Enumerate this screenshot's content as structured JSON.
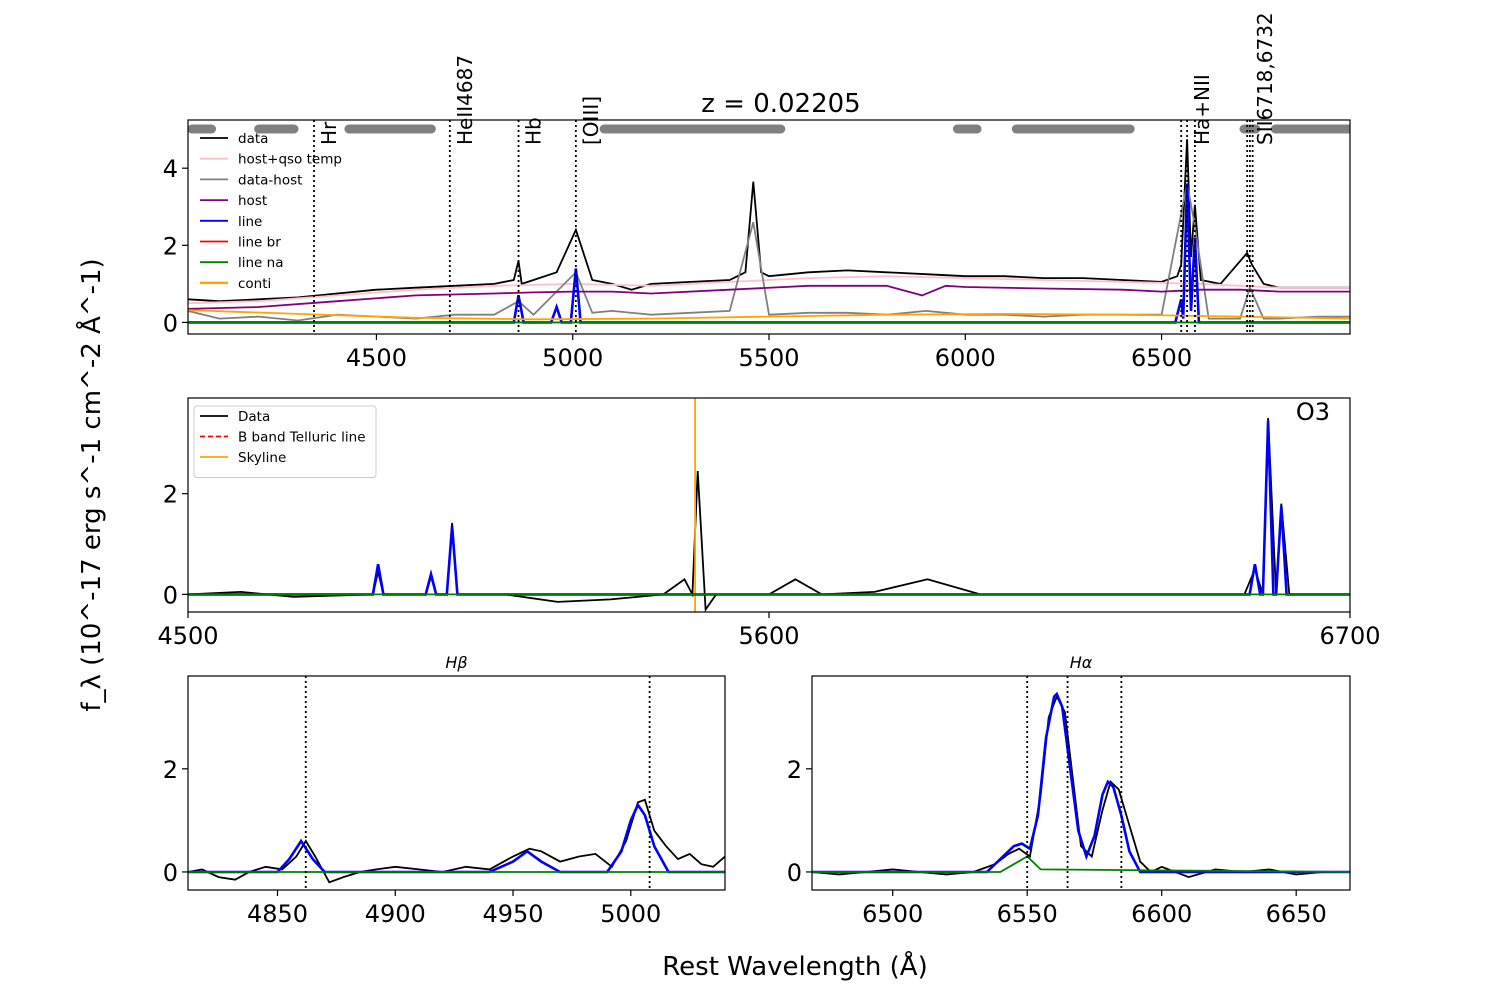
{
  "figure": {
    "ylabel": "f_λ (10^-17 erg s^-1 cm^-2 Å^-1)",
    "xlabel": "Rest Wavelength (Å)"
  },
  "chart_data": [
    {
      "type": "line",
      "panel": "full",
      "title": "z = 0.02205",
      "xlim": [
        4020,
        6980
      ],
      "ylim": [
        -0.3,
        5.25
      ],
      "xticks": [
        4500,
        5000,
        5500,
        6000,
        6500
      ],
      "yticks": [
        0,
        2,
        4
      ],
      "legend": [
        "data",
        "host+qso temp",
        "data-host",
        "host",
        "line",
        "line br",
        "line na",
        "conti"
      ],
      "legend_position": "upper-left",
      "line_marks": [
        {
          "label": "Hr",
          "x": 4341
        },
        {
          "label": "HeII4687",
          "x": 4687
        },
        {
          "label": "Hb",
          "x": 4862
        },
        {
          "label": "[OIII]",
          "x": 5008
        },
        {
          "label": "Ha+NII",
          "x": 6565
        },
        {
          "label": "SII6718,6732",
          "x": 6725
        }
      ],
      "extra_dotted_x": [
        6550,
        6585,
        6718,
        6732
      ],
      "continuum_windows": [
        [
          4030,
          4080
        ],
        [
          4200,
          4290
        ],
        [
          4430,
          4640
        ],
        [
          5080,
          5530
        ],
        [
          5980,
          6030
        ],
        [
          6130,
          6420
        ],
        [
          6710,
          6740
        ],
        [
          6790,
          6980
        ]
      ],
      "series": [
        {
          "name": "data",
          "color": "#000000",
          "x": [
            4020,
            4100,
            4200,
            4300,
            4400,
            4500,
            4600,
            4700,
            4800,
            4850,
            4862,
            4870,
            4900,
            4959,
            5008,
            5050,
            5100,
            5150,
            5200,
            5300,
            5400,
            5440,
            5460,
            5480,
            5500,
            5600,
            5700,
            5800,
            5900,
            6000,
            6100,
            6200,
            6300,
            6400,
            6500,
            6540,
            6550,
            6565,
            6575,
            6585,
            6600,
            6650,
            6718,
            6730,
            6760,
            6800,
            6900,
            6980
          ],
          "y": [
            0.6,
            0.55,
            0.6,
            0.65,
            0.75,
            0.85,
            0.9,
            0.95,
            1.0,
            1.1,
            1.6,
            1.0,
            1.1,
            1.3,
            2.4,
            1.1,
            1.0,
            0.85,
            1.0,
            1.05,
            1.1,
            1.3,
            3.65,
            1.3,
            1.2,
            1.3,
            1.35,
            1.3,
            1.25,
            1.2,
            1.2,
            1.15,
            1.15,
            1.1,
            1.05,
            1.2,
            1.5,
            4.75,
            1.7,
            3.05,
            1.1,
            1.0,
            1.8,
            1.5,
            1.0,
            0.9,
            0.9,
            0.9
          ]
        },
        {
          "name": "host+qso temp",
          "color": "#ffc0cb",
          "x": [
            4020,
            4200,
            4400,
            4600,
            4800,
            5000,
            5200,
            5400,
            5600,
            5800,
            6000,
            6200,
            6400,
            6600,
            6800,
            6980
          ],
          "y": [
            0.5,
            0.55,
            0.7,
            0.85,
            0.95,
            1.0,
            0.95,
            1.05,
            1.15,
            1.2,
            1.15,
            1.1,
            1.05,
            1.0,
            0.9,
            0.9
          ]
        },
        {
          "name": "data-host",
          "color": "#808080",
          "x": [
            4020,
            4100,
            4200,
            4300,
            4400,
            4500,
            4600,
            4700,
            4800,
            4862,
            4900,
            5008,
            5050,
            5100,
            5200,
            5300,
            5400,
            5460,
            5500,
            5600,
            5700,
            5800,
            5900,
            6000,
            6100,
            6200,
            6300,
            6400,
            6500,
            6565,
            6585,
            6620,
            6700,
            6725,
            6760,
            6800,
            6900,
            6980
          ],
          "y": [
            0.3,
            0.1,
            0.15,
            0.05,
            0.2,
            0.15,
            0.1,
            0.2,
            0.2,
            0.55,
            0.2,
            1.3,
            0.25,
            0.3,
            0.2,
            0.25,
            0.3,
            2.6,
            0.2,
            0.25,
            0.25,
            0.2,
            0.3,
            0.2,
            0.2,
            0.15,
            0.2,
            0.2,
            0.2,
            3.6,
            2.5,
            0.1,
            0.1,
            0.9,
            0.1,
            0.1,
            0.15,
            0.15
          ]
        },
        {
          "name": "host",
          "color": "#800080",
          "x": [
            4020,
            4200,
            4400,
            4600,
            4800,
            4900,
            5000,
            5100,
            5200,
            5400,
            5600,
            5800,
            5890,
            5950,
            6000,
            6200,
            6400,
            6500,
            6600,
            6700,
            6800,
            6980
          ],
          "y": [
            0.35,
            0.4,
            0.55,
            0.7,
            0.75,
            0.78,
            0.8,
            0.8,
            0.75,
            0.85,
            0.95,
            0.95,
            0.7,
            0.95,
            0.92,
            0.88,
            0.85,
            0.8,
            0.85,
            0.85,
            0.8,
            0.8
          ]
        },
        {
          "name": "line",
          "color": "#0000ff",
          "x": [
            4020,
            4850,
            4862,
            4875,
            4945,
            4959,
            4972,
            4995,
            5008,
            5020,
            6535,
            6550,
            6555,
            6565,
            6575,
            6585,
            6595,
            6980
          ],
          "y": [
            0,
            0,
            0.7,
            0,
            0,
            0.4,
            0,
            0,
            1.4,
            0,
            0,
            0.6,
            0.1,
            3.6,
            0.3,
            2.2,
            0,
            0
          ]
        },
        {
          "name": "line br",
          "color": "#ff0000",
          "x": [
            4020,
            6980
          ],
          "y": [
            0,
            0
          ]
        },
        {
          "name": "line na",
          "color": "#008000",
          "x": [
            4020,
            6980
          ],
          "y": [
            0,
            0
          ]
        },
        {
          "name": "conti",
          "color": "#ffa500",
          "x": [
            4020,
            4300,
            4600,
            4900,
            5200,
            5500,
            5800,
            6100,
            6400,
            6700,
            6980
          ],
          "y": [
            0.32,
            0.22,
            0.12,
            0.08,
            0.1,
            0.15,
            0.2,
            0.22,
            0.2,
            0.15,
            0.1
          ]
        }
      ]
    },
    {
      "type": "line",
      "panel": "O3",
      "annotation": "O3",
      "xlim": [
        4500,
        6700
      ],
      "ylim": [
        -0.35,
        3.9
      ],
      "xticks": [
        4500,
        5600,
        6700
      ],
      "yticks": [
        0,
        2
      ],
      "legend": [
        "Data",
        "B band Telluric line",
        "Skyline"
      ],
      "legend_position": "upper-left",
      "skyline_x": [
        5460
      ],
      "series": [
        {
          "name": "Data",
          "color": "#000000",
          "x": [
            4500,
            4600,
            4700,
            4850,
            4860,
            4870,
            4950,
            4960,
            4970,
            4990,
            5000,
            5010,
            5100,
            5200,
            5300,
            5400,
            5440,
            5455,
            5465,
            5480,
            5500,
            5600,
            5650,
            5700,
            5800,
            5900,
            6000,
            6100,
            6200,
            6300,
            6400,
            6500,
            6520,
            6535,
            6545,
            6560,
            6570,
            6585,
            6600,
            6700
          ],
          "y": [
            0,
            0.05,
            -0.05,
            0,
            0.45,
            0,
            0,
            0.35,
            0,
            0,
            1.42,
            0,
            0,
            -0.15,
            -0.1,
            0,
            0.3,
            0,
            2.45,
            -0.3,
            0,
            0,
            0.3,
            0,
            0.05,
            0.3,
            0,
            0,
            0,
            0,
            0,
            0,
            0.5,
            0,
            3.5,
            0,
            1.8,
            0,
            0,
            0
          ]
        },
        {
          "name": "Skyline",
          "color": "#ffa500",
          "x": [
            5460,
            5460
          ],
          "y": [
            -0.35,
            3.9
          ]
        },
        {
          "name": "line",
          "color": "#0000ff",
          "x": [
            4500,
            4850,
            4860,
            4870,
            4950,
            4960,
            4970,
            4990,
            5000,
            5010,
            6510,
            6520,
            6530,
            6535,
            6545,
            6555,
            6560,
            6570,
            6580,
            6700
          ],
          "y": [
            0,
            0,
            0.6,
            0,
            0,
            0.4,
            0,
            0,
            1.35,
            0,
            0,
            0.6,
            0,
            0,
            3.45,
            0,
            0,
            1.75,
            0,
            0
          ]
        },
        {
          "name": "line na",
          "color": "#008000",
          "x": [
            4500,
            6700
          ],
          "y": [
            0,
            0
          ]
        }
      ]
    },
    {
      "type": "line",
      "panel": "Hb",
      "title": "Hβ",
      "xlim": [
        4812,
        5040
      ],
      "ylim": [
        -0.35,
        3.8
      ],
      "xticks": [
        4850,
        4900,
        4950,
        5000
      ],
      "yticks": [
        0,
        2
      ],
      "dotted_x": [
        4862,
        5008
      ],
      "series": [
        {
          "name": "data",
          "color": "#000000",
          "x": [
            4812,
            4818,
            4825,
            4832,
            4838,
            4845,
            4852,
            4858,
            4862,
            4866,
            4872,
            4878,
            4885,
            4892,
            4900,
            4910,
            4920,
            4930,
            4940,
            4950,
            4957,
            4962,
            4970,
            4978,
            4985,
            4992,
            4998,
            5003,
            5006,
            5010,
            5015,
            5020,
            5025,
            5030,
            5035,
            5040
          ],
          "y": [
            0,
            0.05,
            -0.1,
            -0.15,
            0,
            0.1,
            0.05,
            0.3,
            0.6,
            0.3,
            -0.2,
            -0.1,
            0,
            0.05,
            0.1,
            0.05,
            0,
            0.1,
            0.05,
            0.3,
            0.45,
            0.4,
            0.2,
            0.3,
            0.35,
            0.1,
            0.6,
            1.35,
            1.4,
            0.8,
            0.5,
            0.25,
            0.35,
            0.15,
            0.1,
            0.3
          ]
        },
        {
          "name": "line",
          "color": "#0000ff",
          "x": [
            4812,
            4850,
            4855,
            4860,
            4865,
            4870,
            4940,
            4950,
            4956,
            4962,
            4970,
            4990,
            4996,
            5000,
            5003,
            5006,
            5010,
            5016,
            5040
          ],
          "y": [
            0,
            0,
            0.25,
            0.6,
            0.25,
            0,
            0,
            0.2,
            0.4,
            0.2,
            0,
            0,
            0.4,
            1.0,
            1.3,
            1.1,
            0.5,
            0,
            0
          ]
        },
        {
          "name": "line na",
          "color": "#008000",
          "x": [
            4812,
            5040
          ],
          "y": [
            0,
            0
          ]
        }
      ]
    },
    {
      "type": "line",
      "panel": "Ha",
      "title": "Hα",
      "xlim": [
        6470,
        6670
      ],
      "ylim": [
        -0.35,
        3.8
      ],
      "xticks": [
        6500,
        6550,
        6600,
        6650
      ],
      "yticks": [
        0,
        2
      ],
      "dotted_x": [
        6550,
        6565,
        6585
      ],
      "series": [
        {
          "name": "data",
          "color": "#000000",
          "x": [
            6470,
            6480,
            6490,
            6500,
            6510,
            6520,
            6530,
            6538,
            6543,
            6547,
            6551,
            6555,
            6558,
            6561,
            6564,
            6567,
            6570,
            6574,
            6578,
            6581,
            6584,
            6588,
            6592,
            6596,
            6600,
            6610,
            6620,
            6630,
            6640,
            6650,
            6660,
            6670
          ],
          "y": [
            0,
            -0.05,
            0,
            0.05,
            0,
            -0.05,
            0,
            0.15,
            0.35,
            0.45,
            0.3,
            1.5,
            3.0,
            3.4,
            3.1,
            1.8,
            0.5,
            0.3,
            1.2,
            1.75,
            1.6,
            0.9,
            0.2,
            0,
            0.1,
            -0.1,
            0.05,
            0,
            0.05,
            -0.05,
            0,
            0
          ]
        },
        {
          "name": "line",
          "color": "#0000ff",
          "x": [
            6470,
            6535,
            6540,
            6545,
            6548,
            6551,
            6554,
            6557,
            6560,
            6561,
            6563,
            6566,
            6569,
            6572,
            6575,
            6578,
            6580,
            6582,
            6585,
            6588,
            6592,
            6670
          ],
          "y": [
            0,
            0,
            0.25,
            0.5,
            0.55,
            0.45,
            1.1,
            2.6,
            3.4,
            3.45,
            3.2,
            2.0,
            0.8,
            0.3,
            0.7,
            1.5,
            1.75,
            1.65,
            1.1,
            0.4,
            0,
            0
          ]
        },
        {
          "name": "line na",
          "color": "#008000",
          "x": [
            6470,
            6540,
            6545,
            6550,
            6555,
            6670
          ],
          "y": [
            0,
            0,
            0.15,
            0.3,
            0.05,
            0
          ]
        }
      ]
    }
  ]
}
